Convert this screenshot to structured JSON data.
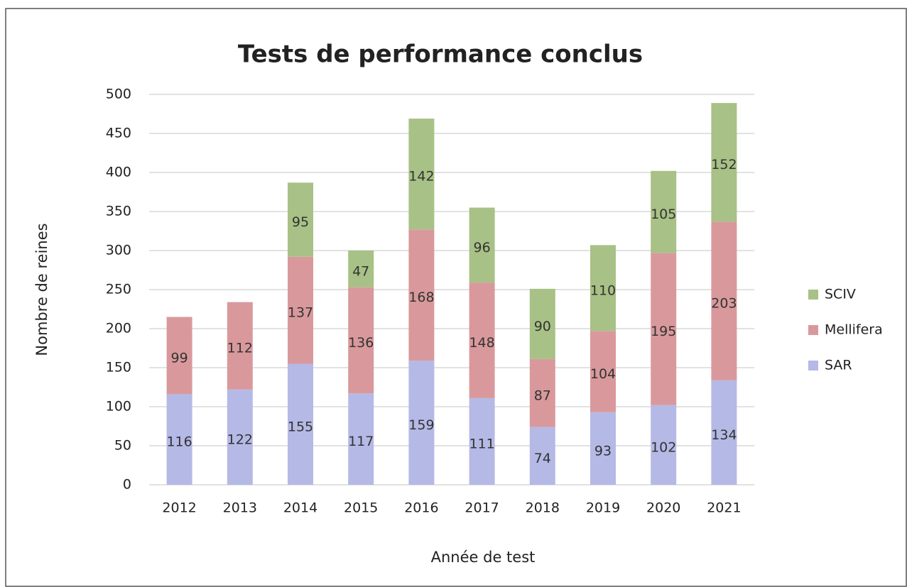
{
  "chart_data": {
    "type": "stacked_bar",
    "title": "Tests de performance conclus",
    "x_label": "Année de test",
    "y_label": "Nombre de reines",
    "categories": [
      "2012",
      "2013",
      "2014",
      "2015",
      "2016",
      "2017",
      "2018",
      "2019",
      "2020",
      "2021"
    ],
    "series": [
      {
        "name": "SAR",
        "color": "#b5b9e6",
        "values": [
          116,
          122,
          155,
          117,
          159,
          111,
          74,
          93,
          102,
          134
        ]
      },
      {
        "name": "Mellifera",
        "color": "#d9999c",
        "values": [
          99,
          112,
          137,
          136,
          168,
          148,
          87,
          104,
          195,
          203
        ]
      },
      {
        "name": "SCIV",
        "color": "#a8c186",
        "values": [
          null,
          null,
          95,
          47,
          142,
          96,
          90,
          110,
          105,
          152
        ]
      }
    ],
    "ylim": [
      0,
      500
    ],
    "yticks": [
      0,
      50,
      100,
      150,
      200,
      250,
      300,
      350,
      400,
      450,
      500
    ],
    "grid": true,
    "legend": "right"
  }
}
